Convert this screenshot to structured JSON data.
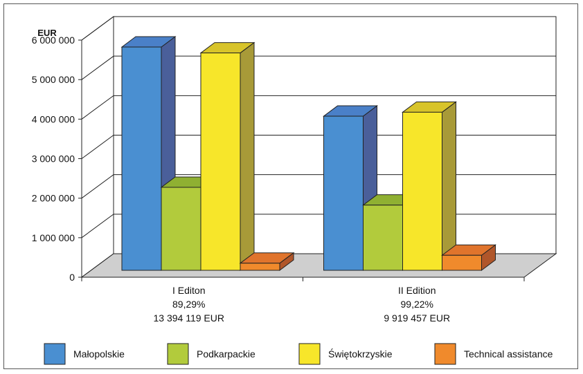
{
  "chart_data": {
    "type": "bar",
    "unit_label": "EUR",
    "ylim": [
      0,
      6000000
    ],
    "y_ticks": [
      "0",
      "1 000 000",
      "2 000 000",
      "3 000 000",
      "4 000 000",
      "5 000 000",
      "6 000 000"
    ],
    "y_tick_values": [
      0,
      1000000,
      2000000,
      3000000,
      4000000,
      5000000,
      6000000
    ],
    "categories": [
      {
        "lines": [
          "I Editon",
          "89,29%",
          "13 394 119 EUR"
        ]
      },
      {
        "lines": [
          "II Edition",
          "99,22%",
          "9 919 457 EUR"
        ]
      }
    ],
    "series": [
      {
        "name": "Małopolskie",
        "values": [
          5650000,
          3900000
        ],
        "color": "#4a8fd1",
        "side_color": "#4a5f9a",
        "top_color": "#4a80c8"
      },
      {
        "name": "Podkarpackie",
        "values": [
          2100000,
          1650000
        ],
        "color": "#b2cb3c",
        "side_color": "#7f9a28",
        "top_color": "#8fb032"
      },
      {
        "name": "Świętokrzyskie",
        "values": [
          5500000,
          4000000
        ],
        "color": "#f7e62a",
        "side_color": "#a89a38",
        "top_color": "#d8c42a"
      },
      {
        "name": "Technical assistance",
        "values": [
          180000,
          380000
        ],
        "color": "#f08a2c",
        "side_color": "#b0562a",
        "top_color": "#e0742c"
      }
    ],
    "legend_position": "bottom",
    "grid": true,
    "style": "3d-column"
  }
}
